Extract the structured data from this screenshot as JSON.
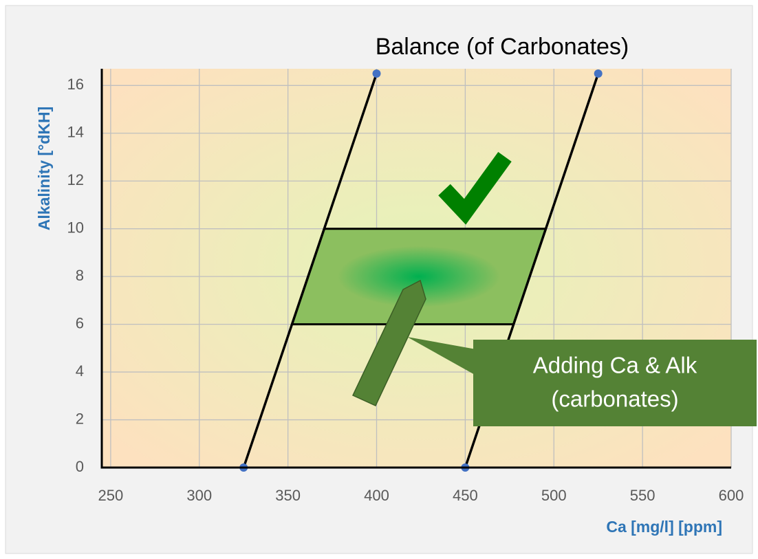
{
  "chart_data": {
    "type": "line",
    "title": "Balance (of Carbonates)",
    "x_label": "Ca [mg/l] [ppm]",
    "y_label": "Alkalinity [°dKH]",
    "series": [
      {
        "x": [
          325,
          400
        ],
        "values": [
          0,
          16.5
        ],
        "color": "#000000",
        "marker_color": "#4472c4"
      },
      {
        "x": [
          450,
          525
        ],
        "values": [
          0,
          16.5
        ],
        "color": "#000000",
        "marker_color": "#4472c4"
      }
    ],
    "shaded_region": {
      "y": [
        6,
        10
      ],
      "color": "#8cbf5f",
      "center_color": "#00b050"
    },
    "annotation": [
      "Adding Ca & Alk",
      "(carbonates)"
    ],
    "xlim": [
      245,
      600
    ],
    "xticks": [
      250,
      300,
      350,
      400,
      450,
      500,
      550,
      600
    ],
    "ylim": [
      0,
      16.7
    ],
    "yticks": [
      0,
      2,
      4,
      6,
      8,
      10,
      12,
      14,
      16
    ],
    "grid": true
  }
}
